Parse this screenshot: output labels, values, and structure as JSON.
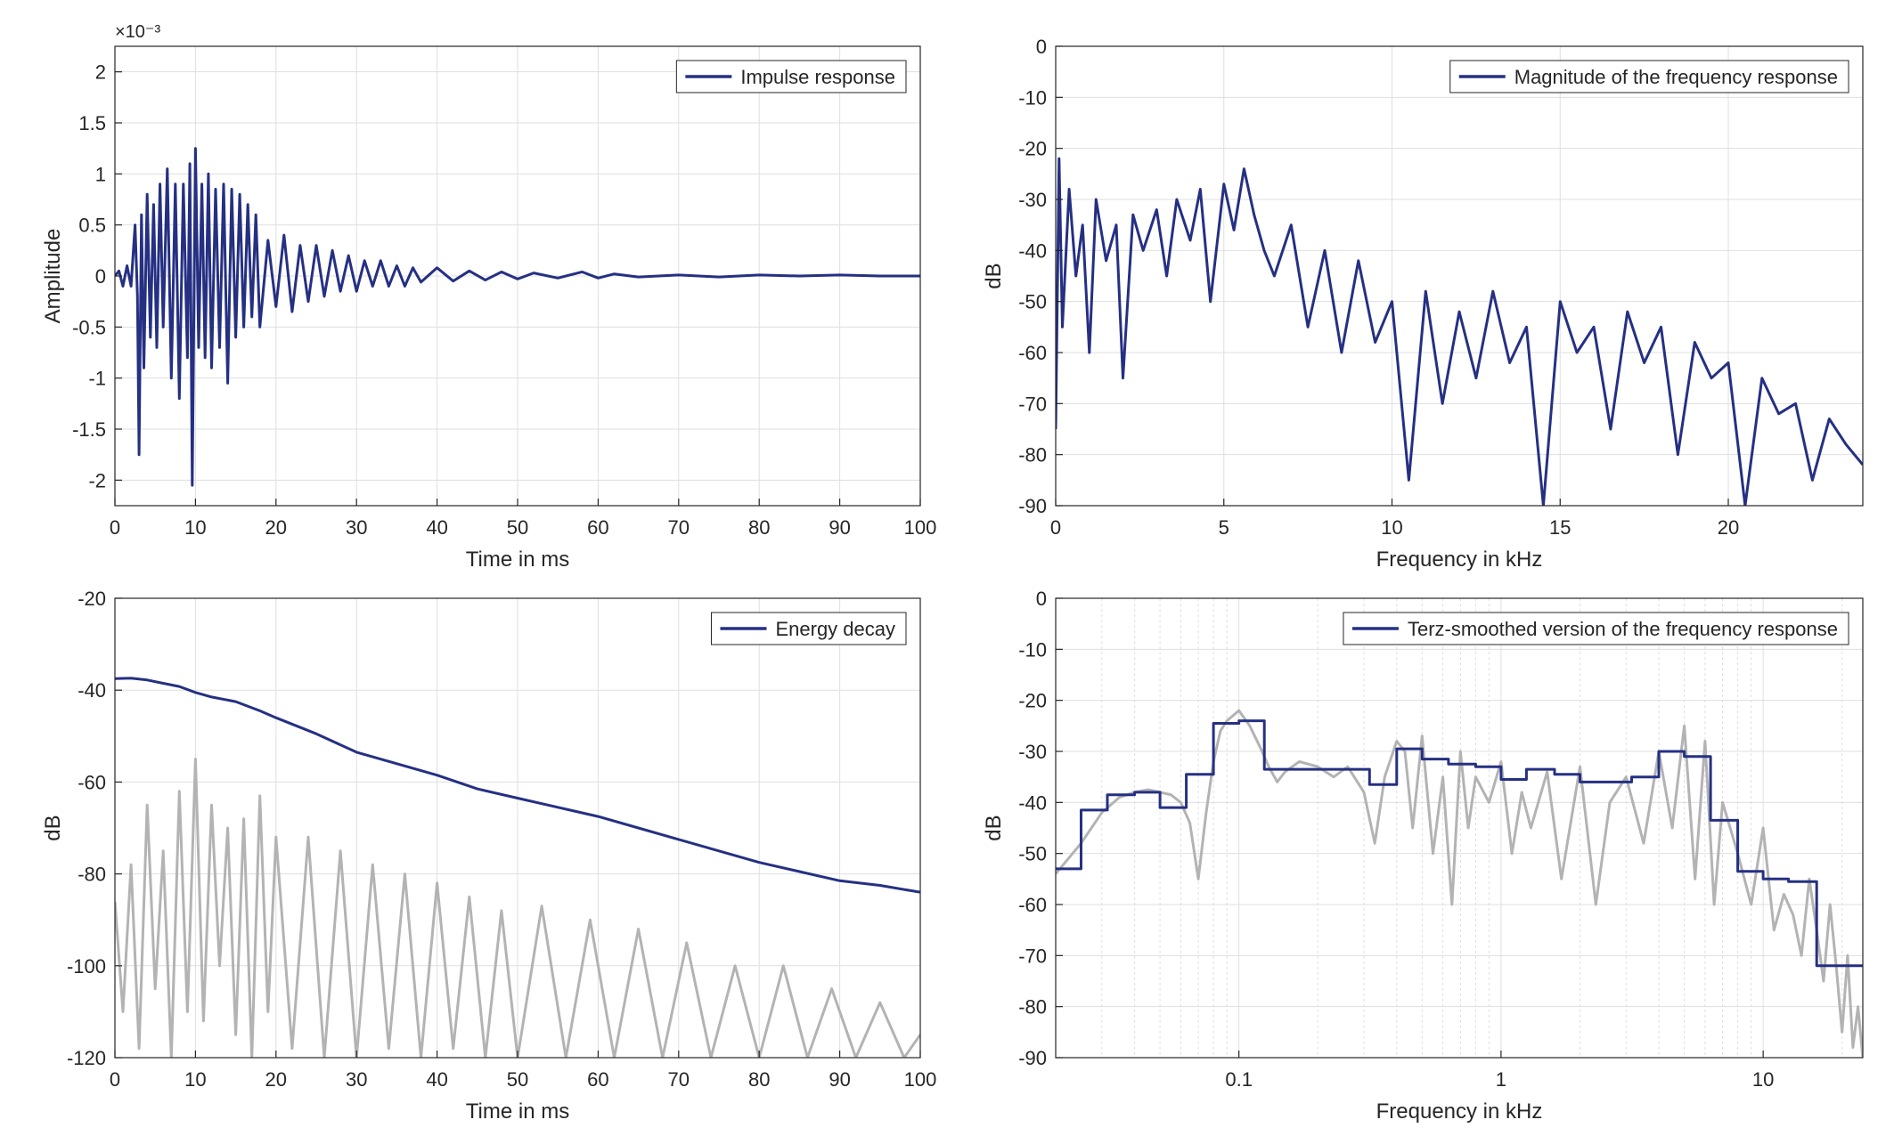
{
  "colors": {
    "series": "#253083",
    "gray": "#b3b3b3",
    "grid": "#dfdfdf",
    "axis": "#262626"
  },
  "chart_data": [
    {
      "type": "line",
      "xlabel": "Time in ms",
      "ylabel": "Amplitude",
      "exponent_label": "×10⁻³",
      "xlim": [
        0,
        100
      ],
      "ylim": [
        -2.25,
        2.25
      ],
      "xticks": [
        "0",
        "10",
        "20",
        "30",
        "40",
        "50",
        "60",
        "70",
        "80",
        "90",
        "100"
      ],
      "yticks": [
        "-2",
        "-1.5",
        "-1",
        "-0.5",
        "0",
        "0.5",
        "1",
        "1.5",
        "2"
      ],
      "legend": "Impulse response",
      "legend_position": "top-right",
      "grid": true,
      "series": [
        {
          "name": "Impulse response",
          "x": [
            0,
            0.5,
            1,
            1.5,
            2,
            2.5,
            2.8,
            3,
            3.3,
            3.6,
            4,
            4.4,
            4.8,
            5.2,
            5.6,
            6,
            6.5,
            7,
            7.5,
            8,
            8.5,
            9,
            9.3,
            9.6,
            10,
            10.4,
            10.8,
            11.2,
            11.6,
            12,
            12.5,
            13,
            13.5,
            14,
            14.5,
            15,
            15.5,
            16,
            16.5,
            17,
            17.5,
            18,
            19,
            20,
            21,
            22,
            23,
            24,
            25,
            26,
            27,
            28,
            29,
            30,
            31,
            32,
            33,
            34,
            35,
            36,
            37,
            38,
            40,
            42,
            44,
            46,
            48,
            50,
            52,
            55,
            58,
            60,
            62,
            65,
            70,
            75,
            80,
            85,
            90,
            95,
            100
          ],
          "values": [
            0.0,
            0.05,
            -0.1,
            0.1,
            -0.1,
            0.5,
            -0.2,
            -1.75,
            0.6,
            -0.9,
            0.8,
            -0.6,
            0.7,
            -0.7,
            0.9,
            -0.5,
            1.05,
            -1.0,
            0.9,
            -1.2,
            0.9,
            -0.8,
            1.1,
            -2.05,
            1.25,
            -0.7,
            0.9,
            -0.8,
            1.0,
            -0.9,
            0.85,
            -0.7,
            0.9,
            -1.05,
            0.85,
            -0.6,
            0.8,
            -0.5,
            0.7,
            -0.4,
            0.6,
            -0.5,
            0.35,
            -0.3,
            0.4,
            -0.35,
            0.3,
            -0.25,
            0.3,
            -0.2,
            0.25,
            -0.15,
            0.2,
            -0.15,
            0.15,
            -0.1,
            0.15,
            -0.1,
            0.1,
            -0.1,
            0.08,
            -0.06,
            0.08,
            -0.05,
            0.05,
            -0.04,
            0.04,
            -0.03,
            0.03,
            -0.02,
            0.04,
            -0.02,
            0.02,
            -0.01,
            0.01,
            -0.01,
            0.01,
            0.0,
            0.01,
            0.0,
            0.0
          ]
        }
      ]
    },
    {
      "type": "line",
      "xlabel": "Frequency in kHz",
      "ylabel": "dB",
      "xlim": [
        0,
        24
      ],
      "ylim": [
        -90,
        0
      ],
      "xticks": [
        "0",
        "5",
        "10",
        "15",
        "20"
      ],
      "xtick_values": [
        0,
        5,
        10,
        15,
        20
      ],
      "yticks": [
        "0",
        "-10",
        "-20",
        "-30",
        "-40",
        "-50",
        "-60",
        "-70",
        "-80",
        "-90"
      ],
      "legend": "Magnitude of the frequency response",
      "legend_position": "top-right",
      "grid": true,
      "series": [
        {
          "name": "Magnitude of the frequency response",
          "x": [
            0,
            0.1,
            0.2,
            0.4,
            0.6,
            0.8,
            1,
            1.2,
            1.5,
            1.8,
            2,
            2.3,
            2.6,
            3,
            3.3,
            3.6,
            4,
            4.3,
            4.6,
            5,
            5.3,
            5.6,
            5.9,
            6.2,
            6.5,
            7,
            7.5,
            8,
            8.5,
            9,
            9.5,
            10,
            10.5,
            11,
            11.5,
            12,
            12.5,
            13,
            13.5,
            14,
            14.5,
            15,
            15.5,
            16,
            16.5,
            17,
            17.5,
            18,
            18.5,
            19,
            19.5,
            20,
            20.5,
            21,
            21.5,
            22,
            22.5,
            23,
            23.5,
            24
          ],
          "values": [
            -75,
            -22,
            -55,
            -28,
            -45,
            -35,
            -60,
            -30,
            -42,
            -35,
            -65,
            -33,
            -40,
            -32,
            -45,
            -30,
            -38,
            -28,
            -50,
            -27,
            -36,
            -24,
            -33,
            -40,
            -45,
            -35,
            -55,
            -40,
            -60,
            -42,
            -58,
            -50,
            -85,
            -48,
            -70,
            -52,
            -65,
            -48,
            -62,
            -55,
            -90,
            -50,
            -60,
            -55,
            -75,
            -52,
            -62,
            -55,
            -80,
            -58,
            -65,
            -62,
            -90,
            -65,
            -72,
            -70,
            -85,
            -73,
            -78,
            -82
          ]
        }
      ]
    },
    {
      "type": "line",
      "xlabel": "Time in ms",
      "ylabel": "dB",
      "xlim": [
        0,
        100
      ],
      "ylim": [
        -120,
        -20
      ],
      "xticks": [
        "0",
        "10",
        "20",
        "30",
        "40",
        "50",
        "60",
        "70",
        "80",
        "90",
        "100"
      ],
      "yticks": [
        "-20",
        "-40",
        "-60",
        "-80",
        "-100",
        "-120"
      ],
      "legend": "Energy decay",
      "legend_position": "top-right",
      "grid": true,
      "series": [
        {
          "name": "Energy decay",
          "x": [
            0,
            2,
            4,
            6,
            8,
            10,
            12,
            15,
            18,
            20,
            25,
            30,
            35,
            40,
            45,
            50,
            55,
            60,
            65,
            70,
            75,
            80,
            85,
            90,
            95,
            100
          ],
          "values": [
            -37.5,
            -37.4,
            -37.8,
            -38.5,
            -39.2,
            -40.5,
            -41.5,
            -42.5,
            -44.5,
            -46,
            -49.5,
            -53.5,
            -56,
            -58.5,
            -61.5,
            -63.5,
            -65.5,
            -67.5,
            -70,
            -72.5,
            -75,
            -77.5,
            -79.5,
            -81.5,
            -82.5,
            -84
          ]
        },
        {
          "x": [
            0,
            1,
            2,
            3,
            4,
            5,
            6,
            7,
            8,
            9,
            10,
            11,
            12,
            13,
            14,
            15,
            16,
            17,
            18,
            19,
            20,
            22,
            24,
            26,
            28,
            30,
            32,
            34,
            36,
            38,
            40,
            42,
            44,
            46,
            48,
            50,
            53,
            56,
            59,
            62,
            65,
            68,
            71,
            74,
            77,
            80,
            83,
            86,
            89,
            92,
            95,
            98,
            100
          ],
          "values": [
            -86,
            -110,
            -78,
            -118,
            -65,
            -105,
            -75,
            -120,
            -62,
            -110,
            -55,
            -112,
            -65,
            -100,
            -70,
            -115,
            -68,
            -120,
            -63,
            -110,
            -72,
            -118,
            -72,
            -120,
            -75,
            -120,
            -78,
            -118,
            -80,
            -120,
            -82,
            -118,
            -85,
            -120,
            -88,
            -120,
            -87,
            -120,
            -90,
            -120,
            -92,
            -120,
            -95,
            -120,
            -100,
            -120,
            -100,
            -120,
            -105,
            -120,
            -108,
            -120,
            -115
          ]
        }
      ]
    },
    {
      "type": "line",
      "xscale": "log",
      "xlabel": "Frequency in kHz",
      "ylabel": "dB",
      "xlim": [
        0.02,
        24
      ],
      "ylim": [
        -90,
        0
      ],
      "xticks": [
        "0.1",
        "1",
        "10"
      ],
      "xtick_values": [
        0.1,
        1,
        10
      ],
      "yticks": [
        "0",
        "-10",
        "-20",
        "-30",
        "-40",
        "-50",
        "-60",
        "-70",
        "-80",
        "-90"
      ],
      "legend": "Terz-smoothed version of the frequency response",
      "legend_position": "top-right",
      "grid": true,
      "series": [
        {
          "name": "Terz-smoothed version of the frequency response",
          "x": [
            0.02,
            0.025,
            0.025,
            0.0315,
            0.0315,
            0.04,
            0.04,
            0.05,
            0.05,
            0.063,
            0.063,
            0.08,
            0.08,
            0.1,
            0.1,
            0.125,
            0.125,
            0.16,
            0.16,
            0.2,
            0.2,
            0.25,
            0.25,
            0.315,
            0.315,
            0.4,
            0.4,
            0.5,
            0.5,
            0.63,
            0.63,
            0.8,
            0.8,
            1.0,
            1.0,
            1.25,
            1.25,
            1.6,
            1.6,
            2.0,
            2.0,
            2.5,
            2.5,
            3.15,
            3.15,
            4.0,
            4.0,
            5.0,
            5.0,
            6.3,
            6.3,
            8.0,
            8.0,
            10.0,
            10.0,
            12.5,
            12.5,
            16.0,
            16.0,
            20.0,
            20.0,
            24
          ],
          "values": [
            -53,
            -53,
            -41.5,
            -41.5,
            -38.5,
            -38.5,
            -38,
            -38,
            -41,
            -41,
            -34.5,
            -34.5,
            -24.5,
            -24.5,
            -24,
            -24,
            -33.5,
            -33.5,
            -33.5,
            -33.5,
            -33.5,
            -33.5,
            -33.5,
            -33.5,
            -36.5,
            -36.5,
            -29.5,
            -29.5,
            -31.5,
            -31.5,
            -32.5,
            -32.5,
            -33,
            -33,
            -35.5,
            -35.5,
            -33.5,
            -33.5,
            -34.5,
            -34.5,
            -36,
            -36,
            -36,
            -36,
            -35,
            -35,
            -30,
            -30,
            -31,
            -31,
            -43.5,
            -43.5,
            -53.5,
            -53.5,
            -55,
            -55,
            -55.5,
            -55.5,
            -72,
            -72,
            -72,
            -72
          ]
        },
        {
          "x": [
            0.02,
            0.025,
            0.03,
            0.035,
            0.04,
            0.045,
            0.05,
            0.055,
            0.06,
            0.065,
            0.07,
            0.075,
            0.08,
            0.085,
            0.09,
            0.1,
            0.11,
            0.12,
            0.13,
            0.14,
            0.15,
            0.17,
            0.2,
            0.23,
            0.26,
            0.3,
            0.33,
            0.36,
            0.4,
            0.43,
            0.46,
            0.5,
            0.55,
            0.6,
            0.65,
            0.7,
            0.75,
            0.8,
            0.9,
            1.0,
            1.1,
            1.2,
            1.3,
            1.5,
            1.7,
            2.0,
            2.3,
            2.6,
            3.0,
            3.5,
            4.0,
            4.5,
            5.0,
            5.5,
            6.0,
            6.5,
            7.0,
            8.0,
            9.0,
            10.0,
            11.0,
            12.0,
            13.0,
            14.0,
            15.0,
            16.0,
            17.0,
            18.0,
            19.0,
            20.0,
            21.0,
            22.0,
            23.0,
            24.0
          ],
          "values": [
            -54,
            -48,
            -42,
            -39,
            -38,
            -37.5,
            -38,
            -38.5,
            -40,
            -44,
            -55,
            -42,
            -32,
            -26,
            -24,
            -22,
            -25,
            -29,
            -33,
            -36,
            -34,
            -32,
            -33,
            -35,
            -33,
            -38,
            -48,
            -35,
            -28,
            -30,
            -45,
            -27,
            -50,
            -35,
            -60,
            -30,
            -45,
            -35,
            -40,
            -32,
            -50,
            -38,
            -45,
            -34,
            -55,
            -33,
            -60,
            -40,
            -35,
            -48,
            -30,
            -45,
            -25,
            -55,
            -28,
            -60,
            -40,
            -50,
            -60,
            -45,
            -65,
            -58,
            -62,
            -70,
            -55,
            -65,
            -75,
            -60,
            -72,
            -85,
            -70,
            -88,
            -80,
            -90
          ]
        }
      ]
    }
  ]
}
